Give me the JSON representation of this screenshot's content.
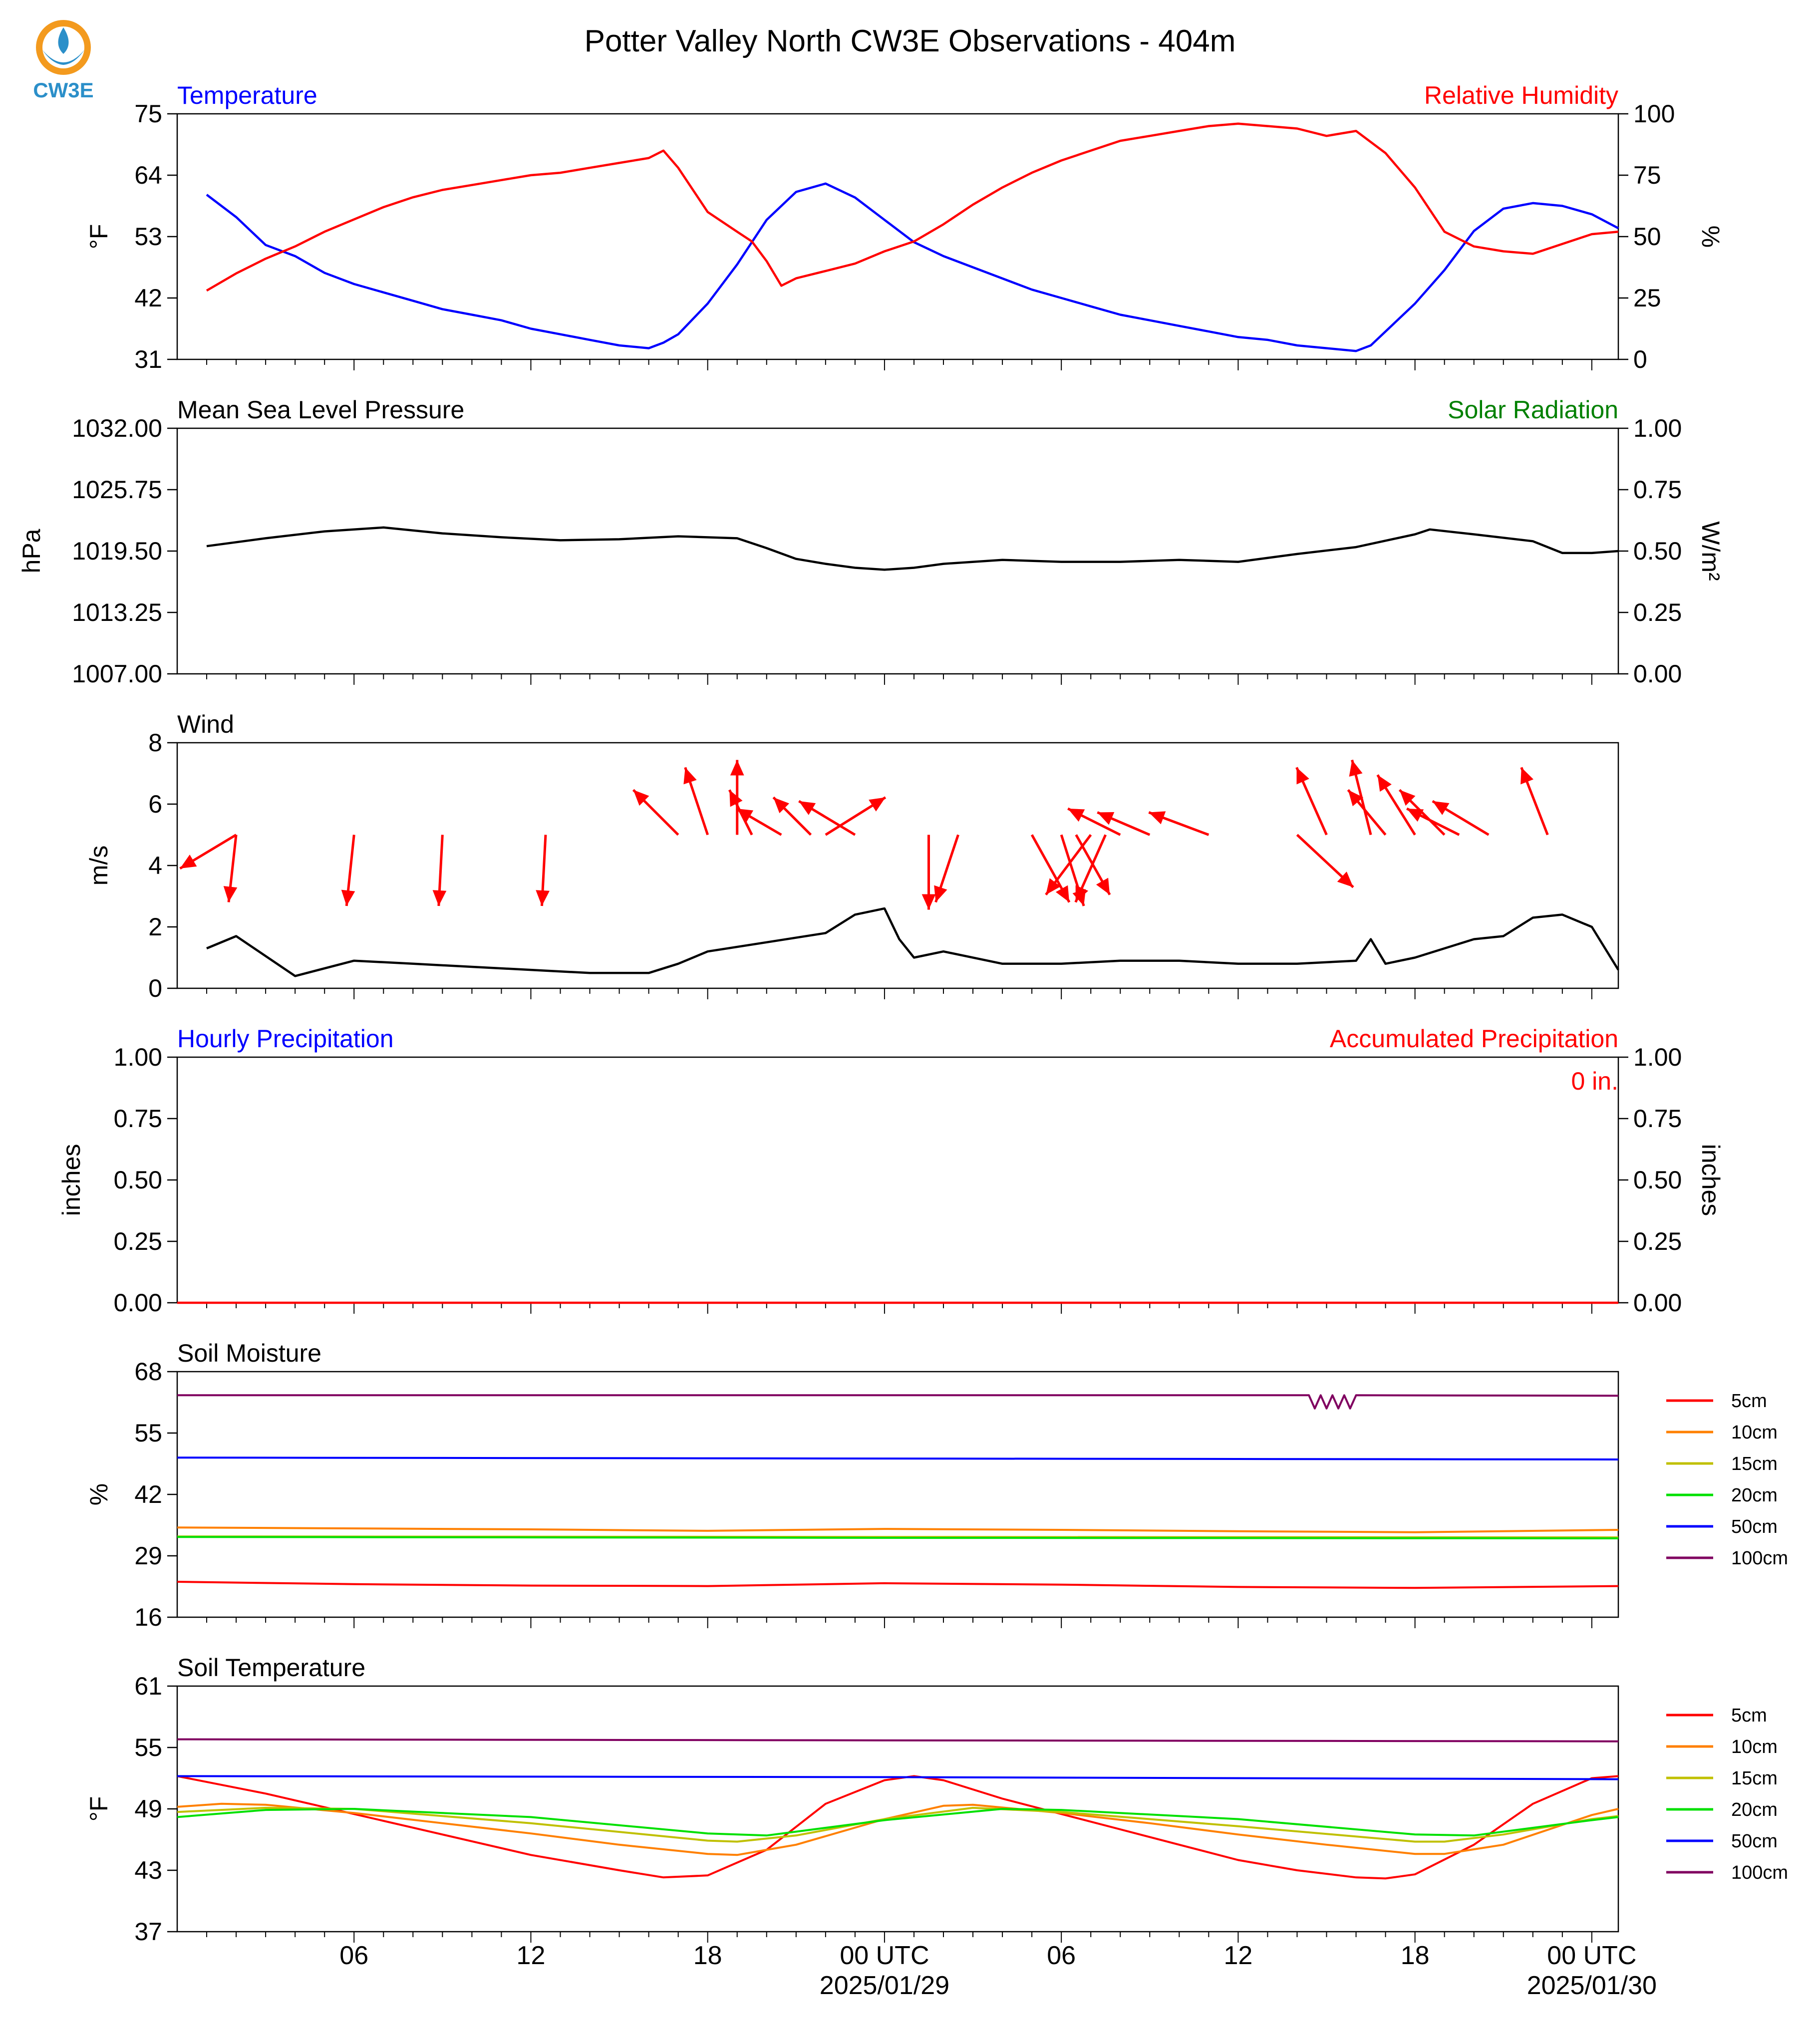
{
  "figure": {
    "title": "Potter Valley North CW3E Observations - 404m",
    "logo_text": "CW3E",
    "x_ticks": [
      "06",
      "12",
      "18",
      "00 UTC",
      "06",
      "12",
      "18",
      "00 UTC"
    ],
    "date_labels": [
      "2025/01/29",
      "2025/01/30"
    ]
  },
  "colors": {
    "blue": "#0000ff",
    "red": "#ff0000",
    "green": "#008000",
    "black": "#000000",
    "logo_orange": "#f39a1e",
    "logo_blue": "#2b8fc9",
    "soil": {
      "5cm": "#ff0000",
      "10cm": "#ff8000",
      "15cm": "#c0c000",
      "20cm": "#00e000",
      "50cm": "#0000ff",
      "100cm": "#800060"
    }
  },
  "chart_data": [
    {
      "type": "line",
      "title_left": "Temperature",
      "title_right": "Relative Humidity",
      "ylabel_left": "°F",
      "ylabel_right": "%",
      "ylim_left": [
        31,
        75
      ],
      "ylim_right": [
        0,
        100
      ],
      "yticks_left": [
        "75",
        "64",
        "53",
        "42",
        "31"
      ],
      "yticks_right": [
        "100",
        "75",
        "50",
        "25",
        "0"
      ],
      "x_hours_since_2025_01_28_00": true,
      "series": [
        {
          "name": "Temperature",
          "axis": "left",
          "color": "#0000ff",
          "x": [
            1,
            2,
            3,
            4,
            5,
            6,
            7,
            8,
            9,
            10,
            11,
            12,
            13,
            14,
            15,
            16,
            16.5,
            17,
            18,
            19,
            20,
            21,
            22,
            23,
            24,
            25,
            26,
            27,
            28,
            29,
            30,
            31,
            32,
            33,
            34,
            35,
            36,
            37,
            38,
            39,
            40,
            40.5,
            41,
            42,
            43,
            44,
            45,
            46,
            47,
            48,
            48.9
          ],
          "y": [
            60.5,
            56.5,
            51.5,
            49.5,
            46.5,
            44.5,
            43,
            41.5,
            40,
            39,
            38,
            36.5,
            35.5,
            34.5,
            33.5,
            33,
            34,
            35.5,
            41,
            48,
            56,
            61,
            62.5,
            60,
            56,
            52,
            49.5,
            47.5,
            45.5,
            43.5,
            42,
            40.5,
            39,
            38,
            37,
            36,
            35,
            34.5,
            33.5,
            33,
            32.5,
            33.5,
            36,
            41,
            47,
            54,
            58,
            59,
            58.5,
            57,
            54.5
          ]
        },
        {
          "name": "Relative Humidity",
          "axis": "right",
          "color": "#ff0000",
          "x": [
            1,
            2,
            3,
            4,
            5,
            6,
            7,
            8,
            9,
            10,
            11,
            12,
            13,
            14,
            15,
            16,
            16.5,
            17,
            18,
            19,
            19.5,
            20,
            20.5,
            21,
            22,
            23,
            24,
            25,
            26,
            27,
            28,
            29,
            30,
            31,
            32,
            33,
            34,
            35,
            36,
            37,
            38,
            39,
            40,
            41,
            42,
            43,
            44,
            45,
            46,
            47,
            48,
            48.9
          ],
          "y": [
            28,
            35,
            41,
            46,
            52,
            57,
            62,
            66,
            69,
            71,
            73,
            75,
            76,
            78,
            80,
            82,
            85,
            78,
            60,
            52,
            48,
            40,
            30,
            33,
            36,
            39,
            44,
            48,
            55,
            63,
            70,
            76,
            81,
            85,
            89,
            91,
            93,
            95,
            96,
            95,
            94,
            91,
            93,
            84,
            70,
            52,
            46,
            44,
            43,
            47,
            51,
            52
          ]
        }
      ]
    },
    {
      "type": "line",
      "title_left": "Mean Sea Level Pressure",
      "title_right": "Solar Radiation",
      "ylabel_left": "hPa",
      "ylabel_right": "W/m²",
      "ylim_left": [
        1007.0,
        1032.0
      ],
      "ylim_right": [
        0.0,
        1.0
      ],
      "yticks_left": [
        "1032.00",
        "1025.75",
        "1019.50",
        "1013.25",
        "1007.00"
      ],
      "yticks_right": [
        "1.00",
        "0.75",
        "0.50",
        "0.25",
        "0.00"
      ],
      "series": [
        {
          "name": "Mean Sea Level Pressure",
          "axis": "left",
          "color": "#000000",
          "x": [
            1,
            3,
            5,
            7,
            9,
            11,
            13,
            15,
            17,
            19,
            20,
            21,
            22,
            23,
            24,
            25,
            26,
            28,
            30,
            32,
            34,
            36,
            38,
            40,
            42,
            42.5,
            44,
            46,
            47,
            48,
            48.9
          ],
          "y": [
            1020.0,
            1020.8,
            1021.5,
            1021.9,
            1021.3,
            1020.9,
            1020.6,
            1020.7,
            1021.0,
            1020.8,
            1019.8,
            1018.7,
            1018.2,
            1017.8,
            1017.6,
            1017.8,
            1018.2,
            1018.6,
            1018.4,
            1018.4,
            1018.6,
            1018.4,
            1019.2,
            1019.9,
            1021.2,
            1021.7,
            1021.2,
            1020.5,
            1019.3,
            1019.3,
            1019.5
          ]
        }
      ]
    },
    {
      "type": "line",
      "title_left": "Wind",
      "ylabel_left": "m/s",
      "ylim_left": [
        0,
        8
      ],
      "yticks_left": [
        "8",
        "6",
        "4",
        "2",
        "0"
      ],
      "series": [
        {
          "name": "Wind Speed",
          "axis": "left",
          "color": "#000000",
          "x": [
            1,
            2,
            4,
            6,
            8,
            10,
            12,
            14,
            16,
            17,
            18,
            20,
            22,
            23,
            24,
            24.5,
            25,
            26,
            28,
            30,
            32,
            34,
            36,
            38,
            40,
            40.5,
            41,
            42,
            44,
            45,
            46,
            47,
            48,
            48.9
          ],
          "y": [
            1.3,
            1.7,
            0.4,
            0.9,
            0.8,
            0.7,
            0.6,
            0.5,
            0.5,
            0.8,
            1.2,
            1.5,
            1.8,
            2.4,
            2.6,
            1.6,
            1.0,
            1.2,
            0.8,
            0.8,
            0.9,
            0.9,
            0.8,
            0.8,
            0.9,
            1.6,
            0.8,
            1.0,
            1.6,
            1.7,
            2.3,
            2.4,
            2.0,
            0.6
          ]
        }
      ],
      "arrows": [
        {
          "x": 2,
          "y": 5,
          "u": -1.5,
          "v": -0.9
        },
        {
          "x": 2,
          "y": 5,
          "u": -0.2,
          "v": -1.8
        },
        {
          "x": 6,
          "y": 5,
          "u": -0.2,
          "v": -1.9
        },
        {
          "x": 9,
          "y": 5,
          "u": -0.1,
          "v": -1.9
        },
        {
          "x": 12.5,
          "y": 5,
          "u": -0.1,
          "v": -1.9
        },
        {
          "x": 17,
          "y": 5,
          "u": -1.2,
          "v": 1.2
        },
        {
          "x": 18,
          "y": 5,
          "u": -0.6,
          "v": 1.8
        },
        {
          "x": 19,
          "y": 5,
          "u": 0.0,
          "v": 2.0
        },
        {
          "x": 19.5,
          "y": 5,
          "u": -0.6,
          "v": 1.2
        },
        {
          "x": 20.5,
          "y": 5,
          "u": -1.2,
          "v": 0.7
        },
        {
          "x": 21.5,
          "y": 5,
          "u": -1.0,
          "v": 1.0
        },
        {
          "x": 22,
          "y": 5,
          "u": 1.6,
          "v": 1.0
        },
        {
          "x": 23,
          "y": 5,
          "u": -1.5,
          "v": 0.9
        },
        {
          "x": 25.5,
          "y": 5,
          "u": 0.0,
          "v": -2.0
        },
        {
          "x": 26.5,
          "y": 5,
          "u": -0.6,
          "v": -1.8
        },
        {
          "x": 29,
          "y": 5,
          "u": 1.0,
          "v": -1.8
        },
        {
          "x": 30,
          "y": 5,
          "u": 0.6,
          "v": -1.9
        },
        {
          "x": 30.5,
          "y": 5,
          "u": 0.9,
          "v": -1.6
        },
        {
          "x": 31,
          "y": 5,
          "u": -1.2,
          "v": -1.6
        },
        {
          "x": 31.5,
          "y": 5,
          "u": -0.8,
          "v": -1.8
        },
        {
          "x": 32,
          "y": 5,
          "u": -1.4,
          "v": 0.7
        },
        {
          "x": 33,
          "y": 5,
          "u": -1.4,
          "v": 0.6
        },
        {
          "x": 35,
          "y": 5,
          "u": -1.6,
          "v": 0.6
        },
        {
          "x": 38,
          "y": 5,
          "u": 1.5,
          "v": -1.4
        },
        {
          "x": 39,
          "y": 5,
          "u": -0.8,
          "v": 1.8
        },
        {
          "x": 40.5,
          "y": 5,
          "u": -0.5,
          "v": 2.0
        },
        {
          "x": 41,
          "y": 5,
          "u": -1.0,
          "v": 1.2
        },
        {
          "x": 42,
          "y": 5,
          "u": -1.0,
          "v": 1.6
        },
        {
          "x": 43,
          "y": 5,
          "u": -1.2,
          "v": 1.2
        },
        {
          "x": 43.5,
          "y": 5,
          "u": -1.4,
          "v": 0.7
        },
        {
          "x": 44.5,
          "y": 5,
          "u": -1.5,
          "v": 0.9
        },
        {
          "x": 46.5,
          "y": 5,
          "u": -0.7,
          "v": 1.8
        }
      ]
    },
    {
      "type": "line",
      "title_left": "Hourly Precipitation",
      "title_right": "Accumulated Precipitation",
      "annotation": "0 in.",
      "ylabel_left": "inches",
      "ylabel_right": "inches",
      "ylim_left": [
        0.0,
        1.0
      ],
      "ylim_right": [
        0.0,
        1.0
      ],
      "yticks_left": [
        "1.00",
        "0.75",
        "0.50",
        "0.25",
        "0.00"
      ],
      "yticks_right": [
        "1.00",
        "0.75",
        "0.50",
        "0.25",
        "0.00"
      ],
      "series": [
        {
          "name": "Accumulated Precipitation",
          "axis": "left",
          "color": "#ff0000",
          "x": [
            0,
            48.9
          ],
          "y": [
            0.0,
            0.0
          ]
        }
      ]
    },
    {
      "type": "line",
      "title_left": "Soil Moisture",
      "ylabel_left": "%",
      "ylim_left": [
        16,
        68
      ],
      "yticks_left": [
        "68",
        "55",
        "42",
        "29",
        "16"
      ],
      "legend": [
        "5cm",
        "10cm",
        "15cm",
        "20cm",
        "50cm",
        "100cm"
      ],
      "series": [
        {
          "name": "5cm",
          "color": "#ff0000",
          "x": [
            0,
            6,
            12,
            18,
            24,
            30,
            36,
            42,
            48.9
          ],
          "y": [
            23.5,
            23.0,
            22.7,
            22.6,
            23.2,
            22.9,
            22.4,
            22.2,
            22.6
          ]
        },
        {
          "name": "10cm",
          "color": "#ff8000",
          "x": [
            0,
            12,
            18,
            24,
            30,
            36,
            42,
            48.9
          ],
          "y": [
            35.0,
            34.6,
            34.3,
            34.7,
            34.5,
            34.2,
            34.0,
            34.5
          ]
        },
        {
          "name": "15cm",
          "color": "#c0c000",
          "x": [
            0,
            24,
            48.9
          ],
          "y": [
            33.1,
            33.0,
            32.9
          ]
        },
        {
          "name": "20cm",
          "color": "#00e000",
          "x": [
            0,
            24,
            48.9
          ],
          "y": [
            33.0,
            32.8,
            32.7
          ]
        },
        {
          "name": "50cm",
          "color": "#0000ff",
          "x": [
            0,
            24,
            48.9
          ],
          "y": [
            49.8,
            49.6,
            49.4
          ]
        },
        {
          "name": "100cm",
          "color": "#800060",
          "x": [
            0,
            38.4,
            38.6,
            38.8,
            39.0,
            39.2,
            39.4,
            39.6,
            39.8,
            40.0,
            48.9
          ],
          "y": [
            63.0,
            63.0,
            60.2,
            63.0,
            60.2,
            63.0,
            60.2,
            63.0,
            60.2,
            63.0,
            62.9
          ]
        }
      ]
    },
    {
      "type": "line",
      "title_left": "Soil Temperature",
      "ylabel_left": "°F",
      "ylim_left": [
        37,
        61
      ],
      "yticks_left": [
        "61",
        "55",
        "49",
        "43",
        "37"
      ],
      "legend": [
        "5cm",
        "10cm",
        "15cm",
        "20cm",
        "50cm",
        "100cm"
      ],
      "series": [
        {
          "name": "5cm",
          "color": "#ff0000",
          "x": [
            0,
            3,
            6,
            9,
            12,
            15,
            16.5,
            18,
            20,
            22,
            24,
            25,
            26,
            28,
            30,
            32,
            34,
            36,
            38,
            40,
            41,
            42,
            44,
            46,
            48,
            48.9
          ],
          "y": [
            52.2,
            50.5,
            48.5,
            46.5,
            44.5,
            43.0,
            42.3,
            42.5,
            45.0,
            49.5,
            51.8,
            52.2,
            51.8,
            50.0,
            48.5,
            47.0,
            45.5,
            44.0,
            43.0,
            42.3,
            42.2,
            42.6,
            45.5,
            49.5,
            52.0,
            52.2
          ]
        },
        {
          "name": "10cm",
          "color": "#ff8000",
          "x": [
            0,
            1.5,
            3,
            6,
            9,
            12,
            15,
            18,
            19,
            21,
            24,
            26,
            27,
            30,
            33,
            36,
            39,
            42,
            43,
            45,
            48,
            48.9
          ],
          "y": [
            49.2,
            49.5,
            49.4,
            48.6,
            47.6,
            46.6,
            45.5,
            44.6,
            44.5,
            45.5,
            48.0,
            49.3,
            49.4,
            48.6,
            47.6,
            46.5,
            45.5,
            44.6,
            44.6,
            45.5,
            48.4,
            49.0
          ]
        },
        {
          "name": "15cm",
          "color": "#c0c000",
          "x": [
            0,
            3,
            6,
            12,
            18,
            19,
            21,
            24,
            27,
            30,
            36,
            42,
            43,
            45,
            48,
            48.9
          ],
          "y": [
            48.7,
            49.1,
            49.0,
            47.6,
            45.9,
            45.8,
            46.4,
            48.0,
            49.1,
            48.7,
            47.3,
            45.8,
            45.8,
            46.5,
            48.0,
            48.3
          ]
        },
        {
          "name": "20cm",
          "color": "#00e000",
          "x": [
            0,
            3,
            6,
            12,
            18,
            20,
            24,
            28,
            30,
            36,
            42,
            44,
            48,
            48.9
          ],
          "y": [
            48.2,
            48.9,
            49.0,
            48.2,
            46.6,
            46.4,
            47.9,
            49.0,
            48.9,
            48.0,
            46.5,
            46.4,
            47.9,
            48.2
          ]
        },
        {
          "name": "50cm",
          "color": "#0000ff",
          "x": [
            0,
            24,
            48.9
          ],
          "y": [
            52.2,
            52.1,
            51.9
          ]
        },
        {
          "name": "100cm",
          "color": "#800060",
          "x": [
            0,
            24,
            48.9
          ],
          "y": [
            55.8,
            55.7,
            55.6
          ]
        }
      ]
    }
  ]
}
